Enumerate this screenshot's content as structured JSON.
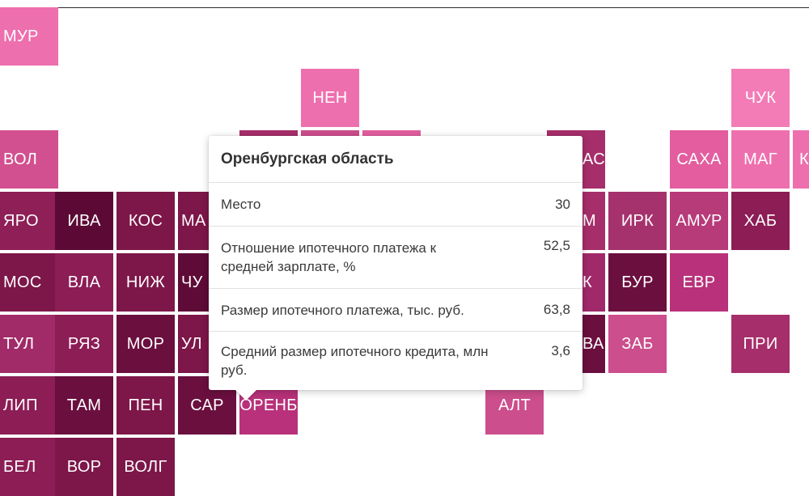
{
  "colors": {
    "light": "#ee6fae",
    "medium": "#cc4e8c",
    "dark": "#8c1d55",
    "darker": "#6b0f3f",
    "darkest": "#5c0a35"
  },
  "tiles": [
    {
      "label": "МУР",
      "color": "#ee6fae"
    },
    {
      "label": "НЕН",
      "color": "#ee6fae"
    },
    {
      "label": "ЧУК",
      "color": "#f37cb6"
    },
    {
      "label": "ВОЛ",
      "color": "#d2508f"
    },
    {
      "label": "САХА",
      "color": "#e35d9f"
    },
    {
      "label": "МАГ",
      "color": "#ee6fae"
    },
    {
      "label": "К",
      "color": "#ee6fae"
    },
    {
      "label": "ЯРО",
      "color": "#8e1f57"
    },
    {
      "label": "ИВА",
      "color": "#5c0a35"
    },
    {
      "label": "КОС",
      "color": "#7d1649"
    },
    {
      "label": "МА",
      "color": "#7d1649"
    },
    {
      "label": "М",
      "color": "#a62e6a"
    },
    {
      "label": "ИРК",
      "color": "#a6326d"
    },
    {
      "label": "АМУР",
      "color": "#b73a79"
    },
    {
      "label": "ХАБ",
      "color": "#8c1d55"
    },
    {
      "label": "МОС",
      "color": "#7d1649"
    },
    {
      "label": "ВЛА",
      "color": "#8c1d55"
    },
    {
      "label": "НИЖ",
      "color": "#7d1649"
    },
    {
      "label": "ЧУ",
      "color": "#5e0b37"
    },
    {
      "label": "К",
      "color": "#a0296a"
    },
    {
      "label": "БУР",
      "color": "#6b0f3f"
    },
    {
      "label": "ЕВР",
      "color": "#b8317a"
    },
    {
      "label": "ТУЛ",
      "color": "#a02b68"
    },
    {
      "label": "РЯЗ",
      "color": "#8c1d55"
    },
    {
      "label": "МОР",
      "color": "#6b0f3f"
    },
    {
      "label": "УЛ",
      "color": "#7d1649"
    },
    {
      "label": "ВА",
      "color": "#6b0f3f"
    },
    {
      "label": "ЗАБ",
      "color": "#cc4e8c"
    },
    {
      "label": "ПРИ",
      "color": "#a62e6a"
    },
    {
      "label": "ЛИП",
      "color": "#8c1d55"
    },
    {
      "label": "ТАМ",
      "color": "#6b0f3f"
    },
    {
      "label": "ПЕН",
      "color": "#7d1649"
    },
    {
      "label": "САР",
      "color": "#6b0f3f"
    },
    {
      "label": "ОРЕНБ",
      "color": "#b8317a"
    },
    {
      "label": "АЛТ",
      "color": "#cc4e8c"
    },
    {
      "label": "БЕЛ",
      "color": "#8c1d55"
    },
    {
      "label": "ВОР",
      "color": "#7d1649"
    },
    {
      "label": "ВОЛГ",
      "color": "#7d1649"
    },
    {
      "label": "",
      "color": "#a62e6a"
    },
    {
      "label": "",
      "color": "#cc4e8c"
    },
    {
      "label": "",
      "color": "#e35d9f"
    },
    {
      "label": "",
      "color": "#6b0f3f"
    },
    {
      "label": "",
      "color": "#a62e6a"
    },
    {
      "label": "",
      "color": "#cc4e8c"
    }
  ],
  "tooltip": {
    "title": "Оренбургская область",
    "rows": [
      {
        "label": "Место",
        "value": "30"
      },
      {
        "label": "Отношение ипотечного платежа к средней зарплате, %",
        "value": "52,5"
      },
      {
        "label": "Размер ипотечного платежа, тыс. руб.",
        "value": "63,8"
      },
      {
        "label": "Средний размер ипотечного кредита, млн руб.",
        "value": "3,6"
      }
    ]
  }
}
